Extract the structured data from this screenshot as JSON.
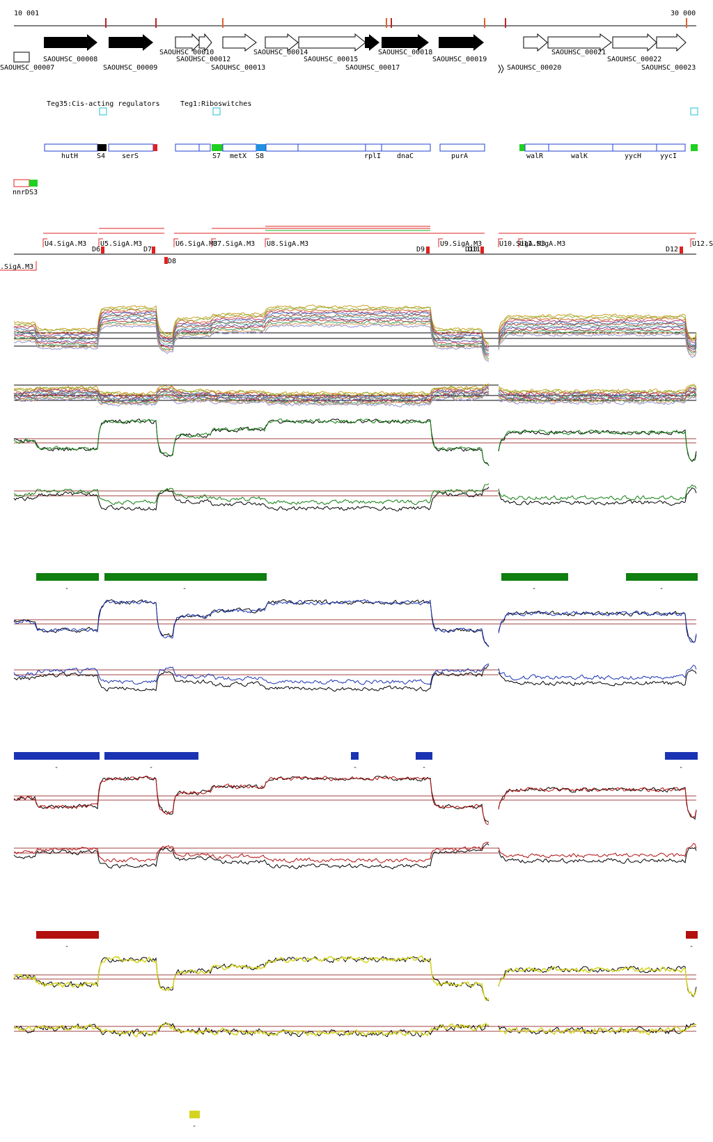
{
  "ruler": {
    "start_label": "10 001",
    "end_label": "30 000"
  },
  "genes": [
    {
      "label": "SAOUHSC_00007",
      "strand": "none"
    },
    {
      "label": "SAOUHSC_00008",
      "strand": "+",
      "filled": true
    },
    {
      "label": "SAOUHSC_00009",
      "strand": "+",
      "filled": true
    },
    {
      "label": "SAOUHSC_00010",
      "strand": "+",
      "filled": false
    },
    {
      "label": "SAOUHSC_00012",
      "strand": "+",
      "filled": false
    },
    {
      "label": "SAOUHSC_00013",
      "strand": "+",
      "filled": false
    },
    {
      "label": "SAOUHSC_00014",
      "strand": "+",
      "filled": false
    },
    {
      "label": "SAOUHSC_00015",
      "strand": "+",
      "filled": false
    },
    {
      "label": "SAOUHSC_00017",
      "strand": "+",
      "filled": true
    },
    {
      "label": "SAOUHSC_00018",
      "strand": "+",
      "filled": true
    },
    {
      "label": "SAOUHSC_00019",
      "strand": "+",
      "filled": true
    },
    {
      "label": "SAOUHSC_00020",
      "strand": "+",
      "filled": false
    },
    {
      "label": "SAOUHSC_00021",
      "strand": "+",
      "filled": false
    },
    {
      "label": "SAOUHSC_00022",
      "strand": "+",
      "filled": false
    },
    {
      "label": "SAOUHSC_00023",
      "strand": "+",
      "filled": false
    }
  ],
  "regulators": [
    {
      "label": "Teg35:Cis-acting regulators"
    },
    {
      "label": "Teg1:Riboswitches"
    }
  ],
  "annotations": [
    {
      "label": "hutH"
    },
    {
      "label": "S4"
    },
    {
      "label": "serS"
    },
    {
      "label": "S7"
    },
    {
      "label": "metX"
    },
    {
      "label": "S8"
    },
    {
      "label": "rplI"
    },
    {
      "label": "dnaC"
    },
    {
      "label": "purA"
    },
    {
      "label": "walR"
    },
    {
      "label": "walK"
    },
    {
      "label": "yycH"
    },
    {
      "label": "yycI"
    }
  ],
  "small_rna": {
    "label": "nnrDS3"
  },
  "promoters": [
    {
      "label": "U4.SigA.M3"
    },
    {
      "label": "U5.SigA.M3"
    },
    {
      "label": "U6.SigA.M3"
    },
    {
      "label": "U7.SigA.M3"
    },
    {
      "label": "U8.SigA.M3"
    },
    {
      "label": "U9.SigA.M3"
    },
    {
      "label": "U10.SigA.M3"
    },
    {
      "label": "U11.SigA.M3"
    },
    {
      "label": "U12.S"
    },
    {
      "label": ".SigA.M3"
    }
  ],
  "terminators": [
    {
      "label": "D6"
    },
    {
      "label": "D7"
    },
    {
      "label": "D8"
    },
    {
      "label": "D9"
    },
    {
      "label": "D10"
    },
    {
      "label": "D11"
    },
    {
      "label": "D12"
    }
  ],
  "segment_markers": [
    {
      "label": "-"
    },
    {
      "label": "-"
    },
    {
      "label": "-"
    },
    {
      "label": "-"
    },
    {
      "label": "-"
    },
    {
      "label": "-"
    },
    {
      "label": "-"
    },
    {
      "label": "-"
    },
    {
      "label": "-"
    },
    {
      "label": "-"
    },
    {
      "label": "-"
    },
    {
      "label": "-"
    }
  ],
  "colors": {
    "green": "#0f7f0f",
    "blue": "#1a33b3",
    "red": "#b30f0f",
    "yellow": "#d4d420",
    "gene_outline": "#000000",
    "annot_outline": "#2040d0",
    "promoter": "#e02020"
  }
}
